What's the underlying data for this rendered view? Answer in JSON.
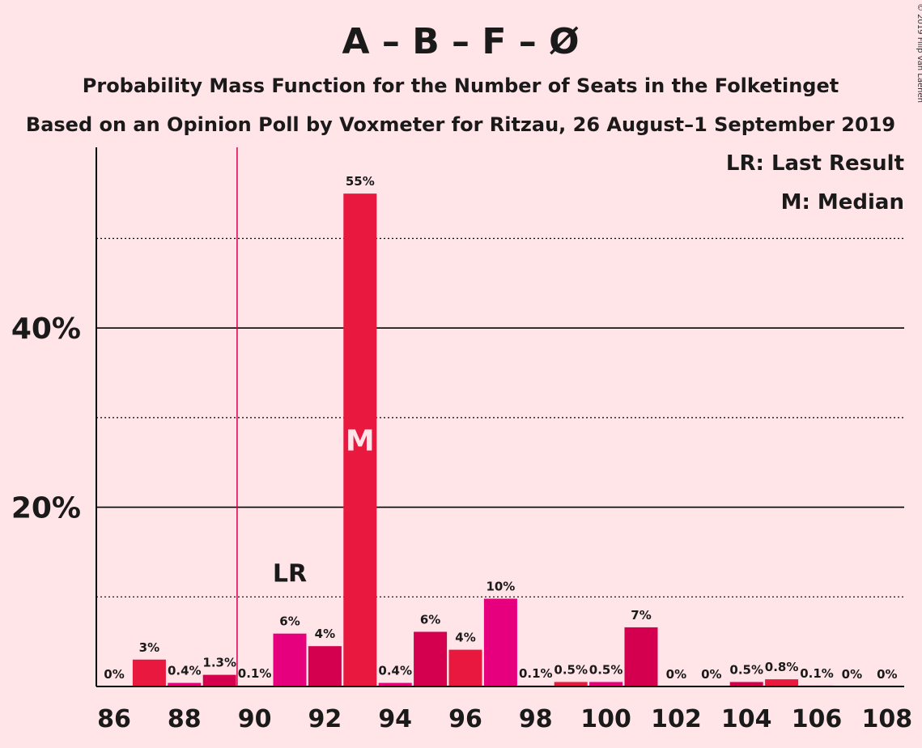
{
  "chart_data": {
    "type": "bar",
    "title": "A – B – F – Ø",
    "subtitle1": "Probability Mass Function for the Number of Seats in the Folketinget",
    "subtitle2": "Based on an Opinion Poll by Voxmeter for Ritzau, 26 August–1 September 2019",
    "credit": "© 2019 Filip van Laenen",
    "x": [
      86,
      87,
      88,
      89,
      90,
      91,
      92,
      93,
      94,
      95,
      96,
      97,
      98,
      99,
      100,
      101,
      102,
      103,
      104,
      105,
      106,
      107,
      108
    ],
    "values": [
      0,
      3.0,
      0.4,
      1.3,
      0.1,
      5.9,
      4.5,
      55,
      0.4,
      6.1,
      4.1,
      9.8,
      0.1,
      0.5,
      0.5,
      6.6,
      0,
      0,
      0.5,
      0.8,
      0.1,
      0,
      0
    ],
    "value_labels": [
      "0%",
      "3%",
      "0.4%",
      "1.3%",
      "0.1%",
      "6%",
      "4%",
      "55%",
      "0.4%",
      "6%",
      "4%",
      "10%",
      "0.1%",
      "0.5%",
      "0.5%",
      "7%",
      "0%",
      "0%",
      "0.5%",
      "0.8%",
      "0.1%",
      "0%",
      "0%"
    ],
    "x_tick_labels": [
      "86",
      "88",
      "90",
      "92",
      "94",
      "96",
      "98",
      "100",
      "102",
      "104",
      "106",
      "108"
    ],
    "y_tick_labels": [
      "20%",
      "40%"
    ],
    "ylim": [
      0,
      60
    ],
    "grid": {
      "solid": [
        20,
        40
      ],
      "dotted": [
        10,
        30,
        50
      ]
    },
    "last_result": 90,
    "last_result_label": "LR",
    "median": 93,
    "median_label": "M",
    "legend": [
      "LR: Last Result",
      "M: Median"
    ],
    "legend_position": "top-right",
    "colors": {
      "background": "#FFE4E8",
      "bar_palette": [
        "#D4004F",
        "#E8183F",
        "#E6007E"
      ],
      "last_result_line": "#D4004F",
      "axis": "#000000"
    }
  }
}
